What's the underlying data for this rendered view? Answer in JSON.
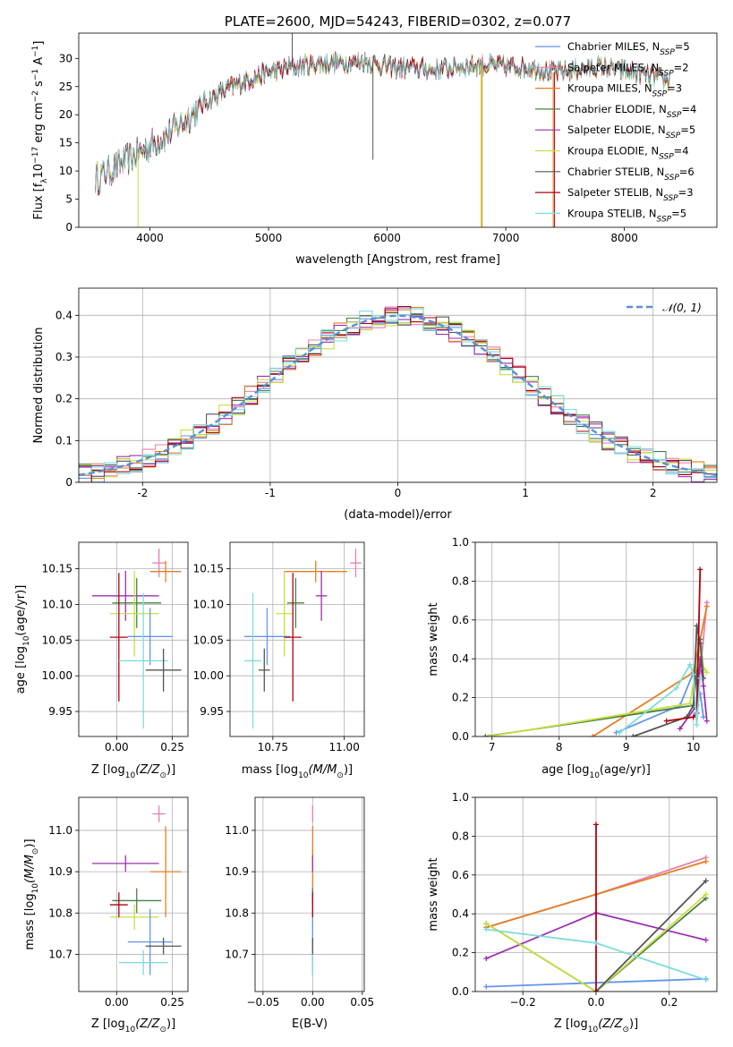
{
  "colors": {
    "chabrier_miles": "#6495ed",
    "salpeter_miles": "#e87fb0",
    "kroupa_miles": "#e67e22",
    "chabrier_elodie": "#4a7f4a",
    "salpeter_elodie": "#9b30b0",
    "kroupa_elodie": "#c8e040",
    "chabrier_stelib": "#555555",
    "salpeter_stelib": "#b00010",
    "kroupa_stelib": "#7fdcdc",
    "gaussian": "#5b8fd8",
    "grid": "#b0b0b0"
  },
  "chart_data": [
    {
      "type": "line",
      "title": "PLATE=2600, MJD=54243, FIBERID=0302, z=0.077",
      "xlabel": "wavelength [Angstrom, rest frame]",
      "ylabel": "Flux [f",
      "ylabel_sub": "λ",
      "ylabel_rest": "10",
      "ylabel_exp": "−17",
      "ylabel_unit": " erg cm",
      "ylabel_exp2": "−2",
      "ylabel_unit2": " s",
      "ylabel_exp3": "−1",
      "ylabel_unit3": " A",
      "ylabel_exp4": "−1",
      "ylabel_end": "]",
      "xlim": [
        3400,
        8780
      ],
      "ylim": [
        0,
        34.5
      ],
      "xticks": [
        4000,
        5000,
        6000,
        7000,
        8000
      ],
      "yticks": [
        0,
        5,
        10,
        15,
        20,
        25,
        30
      ],
      "legend_position": "upper-right",
      "series": [
        {
          "name": "Chabrier MILES, N",
          "sub": "SSP",
          "n": "=5",
          "color_key": "chabrier_miles"
        },
        {
          "name": "Salpeter MILES, N",
          "sub": "SSP",
          "n": "=2",
          "color_key": "salpeter_miles"
        },
        {
          "name": "Kroupa MILES, N",
          "sub": "SSP",
          "n": "=3",
          "color_key": "kroupa_miles"
        },
        {
          "name": "Chabrier ELODIE, N",
          "sub": "SSP",
          "n": "=4",
          "color_key": "chabrier_elodie"
        },
        {
          "name": "Salpeter ELODIE, N",
          "sub": "SSP",
          "n": "=5",
          "color_key": "salpeter_elodie"
        },
        {
          "name": "Kroupa ELODIE, N",
          "sub": "SSP",
          "n": "=4",
          "color_key": "kroupa_elodie"
        },
        {
          "name": "Chabrier STELIB, N",
          "sub": "SSP",
          "n": "=6",
          "color_key": "chabrier_stelib"
        },
        {
          "name": "Salpeter STELIB, N",
          "sub": "SSP",
          "n": "=3",
          "color_key": "salpeter_stelib"
        },
        {
          "name": "Kroupa STELIB, N",
          "sub": "SSP",
          "n": "=5",
          "color_key": "kroupa_stelib"
        }
      ],
      "continuum_x": [
        3540,
        3700,
        3850,
        4000,
        4150,
        4300,
        4450,
        4600,
        4800,
        5000,
        5200,
        5400,
        5600,
        5800,
        6000,
        6200,
        6400,
        6600,
        6800,
        7000,
        7200,
        7400,
        7600,
        7800,
        8000,
        8200,
        8380
      ],
      "continuum_y": [
        8.5,
        10.5,
        12.5,
        14.5,
        16.5,
        19,
        22,
        24,
        26,
        27.5,
        28.5,
        29,
        29.3,
        29.5,
        28.5,
        28.3,
        28,
        28.5,
        28.8,
        28.5,
        28.5,
        27.5,
        28,
        28.5,
        27.8,
        27,
        26
      ],
      "spikes": [
        {
          "x": 3900,
          "y": 0,
          "color_key": "kroupa_elodie"
        },
        {
          "x": 5200,
          "y": 38,
          "color_key": "chabrier_stelib"
        },
        {
          "x": 5880,
          "y": 12,
          "color_key": "chabrier_stelib"
        },
        {
          "x": 6790,
          "y": 0,
          "color_key": "kroupa_elodie"
        },
        {
          "x": 6800,
          "y": 0,
          "color_key": "kroupa_miles"
        },
        {
          "x": 7400,
          "y": 0,
          "color_key": "kroupa_miles"
        },
        {
          "x": 7410,
          "y": 0,
          "color_key": "salpeter_stelib"
        }
      ]
    },
    {
      "type": "histogram",
      "xlabel": "(data-model)/error",
      "ylabel": "Normed distribution",
      "xlim": [
        -2.5,
        2.5
      ],
      "ylim": [
        0,
        0.465
      ],
      "xticks": [
        -2,
        -1,
        0,
        1,
        2
      ],
      "yticks": [
        0.0,
        0.1,
        0.2,
        0.3,
        0.4
      ],
      "bin_width": 0.1,
      "bin_start": -2.5,
      "gaussian_label": "𝒩(0, 1)",
      "gaussian_mu": 0,
      "gaussian_sigma": 1,
      "legend_position": "upper-right"
    },
    {
      "type": "scatter",
      "panel": "Z-age",
      "xlabel": "Z [log",
      "xlabel_sub": "10",
      "xlabel_rest": "(Z/Z",
      "xlabel_sub2": "⊙",
      "xlabel_end": ")]",
      "ylabel": "age  [log",
      "ylabel_sub": "10",
      "ylabel_rest": "(age/yr)]",
      "xlim": [
        -0.17,
        0.32
      ],
      "ylim": [
        9.915,
        10.187
      ],
      "xticks": [
        0.0,
        0.25
      ],
      "xtick_labels": [
        "0.00",
        "0.25"
      ],
      "yticks": [
        9.95,
        10.0,
        10.05,
        10.1,
        10.15
      ],
      "ytick_labels": [
        "9.95",
        "10.00",
        "10.05",
        "10.10",
        "10.15"
      ],
      "points": [
        {
          "x": 0.19,
          "y": 10.158,
          "xerr": 0.03,
          "yerr": 0.02,
          "color_key": "salpeter_miles"
        },
        {
          "x": 0.22,
          "y": 10.146,
          "xerr": 0.07,
          "yerr": 0.015,
          "color_key": "kroupa_miles"
        },
        {
          "x": 0.04,
          "y": 10.112,
          "xerr": 0.15,
          "yerr": 0.035,
          "color_key": "salpeter_elodie"
        },
        {
          "x": 0.09,
          "y": 10.102,
          "xerr": 0.11,
          "yerr": 0.035,
          "color_key": "chabrier_elodie"
        },
        {
          "x": 0.08,
          "y": 10.087,
          "xerr": 0.11,
          "yerr": 0.06,
          "color_key": "kroupa_elodie"
        },
        {
          "x": 0.15,
          "y": 10.055,
          "xerr": 0.1,
          "yerr": 0.04,
          "color_key": "chabrier_miles"
        },
        {
          "x": 0.01,
          "y": 10.054,
          "xerr": 0.04,
          "yerr": 0.09,
          "color_key": "salpeter_stelib"
        },
        {
          "x": 0.12,
          "y": 10.021,
          "xerr": 0.11,
          "yerr": 0.095,
          "color_key": "kroupa_stelib"
        },
        {
          "x": 0.21,
          "y": 10.008,
          "xerr": 0.08,
          "yerr": 0.03,
          "color_key": "chabrier_stelib"
        }
      ]
    },
    {
      "type": "scatter",
      "panel": "mass-age",
      "xlabel": "mass [log",
      "xlabel_sub": "10",
      "xlabel_rest": "(M/M",
      "xlabel_sub2": "⊙",
      "xlabel_end": ")]",
      "xlim": [
        10.6,
        11.07
      ],
      "ylim": [
        9.915,
        10.187
      ],
      "xticks": [
        10.75,
        11.0
      ],
      "xtick_labels": [
        "10.75",
        "11.00"
      ],
      "yticks": [
        9.95,
        10.0,
        10.05,
        10.1,
        10.15
      ],
      "ytick_labels": [
        "9.95",
        "10.00",
        "10.05",
        "10.10",
        "10.15"
      ],
      "points": [
        {
          "x": 11.04,
          "y": 10.158,
          "xerr": 0.02,
          "yerr": 0.02,
          "color_key": "salpeter_miles"
        },
        {
          "x": 10.9,
          "y": 10.146,
          "xerr": 0.11,
          "yerr": 0.015,
          "color_key": "kroupa_miles"
        },
        {
          "x": 10.92,
          "y": 10.112,
          "xerr": 0.02,
          "yerr": 0.035,
          "color_key": "salpeter_elodie"
        },
        {
          "x": 10.83,
          "y": 10.102,
          "xerr": 0.03,
          "yerr": 0.035,
          "color_key": "chabrier_elodie"
        },
        {
          "x": 10.79,
          "y": 10.087,
          "xerr": 0.03,
          "yerr": 0.06,
          "color_key": "kroupa_elodie"
        },
        {
          "x": 10.73,
          "y": 10.055,
          "xerr": 0.08,
          "yerr": 0.04,
          "color_key": "chabrier_miles"
        },
        {
          "x": 10.82,
          "y": 10.054,
          "xerr": 0.03,
          "yerr": 0.09,
          "color_key": "salpeter_stelib"
        },
        {
          "x": 10.68,
          "y": 10.021,
          "xerr": 0.03,
          "yerr": 0.095,
          "color_key": "kroupa_stelib"
        },
        {
          "x": 10.72,
          "y": 10.008,
          "xerr": 0.02,
          "yerr": 0.03,
          "color_key": "chabrier_stelib"
        }
      ]
    },
    {
      "type": "line",
      "panel": "age-weight",
      "xlabel": "age  [log",
      "xlabel_sub": "10",
      "xlabel_rest": "(age/yr)]",
      "ylabel": "mass weight",
      "xlim": [
        6.75,
        10.35
      ],
      "ylim": [
        0,
        1.0
      ],
      "xticks": [
        7,
        8,
        9,
        10
      ],
      "yticks": [
        0.0,
        0.2,
        0.4,
        0.6,
        0.8,
        1.0
      ],
      "ytick_labels": [
        "0.0",
        "0.2",
        "0.4",
        "0.6",
        "0.8",
        "1.0"
      ],
      "series": [
        {
          "color_key": "chabrier_miles",
          "x": [
            8.85,
            9.8,
            10.0,
            10.1,
            10.15
          ],
          "y": [
            0.02,
            0.16,
            0.33,
            0.22,
            0.1
          ]
        },
        {
          "color_key": "salpeter_miles",
          "x": [
            10.1,
            10.2
          ],
          "y": [
            0.33,
            0.69
          ]
        },
        {
          "color_key": "kroupa_miles",
          "x": [
            8.5,
            10.0,
            10.2
          ],
          "y": [
            0.0,
            0.33,
            0.67
          ]
        },
        {
          "color_key": "chabrier_elodie",
          "x": [
            6.9,
            10.0,
            10.1,
            10.15
          ],
          "y": [
            0.0,
            0.16,
            0.5,
            0.35
          ]
        },
        {
          "color_key": "salpeter_elodie",
          "x": [
            9.8,
            10.05,
            10.1,
            10.15,
            10.2
          ],
          "y": [
            0.04,
            0.16,
            0.4,
            0.26,
            0.08
          ]
        },
        {
          "color_key": "kroupa_elodie",
          "x": [
            6.95,
            9.95,
            10.1,
            10.15,
            10.2
          ],
          "y": [
            0.0,
            0.17,
            0.48,
            0.35,
            0.33
          ]
        },
        {
          "color_key": "chabrier_stelib",
          "x": [
            9.1,
            9.9,
            10.0,
            10.05,
            10.1,
            10.15
          ],
          "y": [
            0.0,
            0.1,
            0.16,
            0.57,
            0.48,
            0.3
          ]
        },
        {
          "color_key": "salpeter_stelib",
          "x": [
            9.6,
            10.0,
            10.05,
            10.1
          ],
          "y": [
            0.08,
            0.1,
            0.12,
            0.86
          ]
        },
        {
          "color_key": "kroupa_stelib",
          "x": [
            8.9,
            9.75,
            9.95,
            10.0,
            10.05,
            10.1
          ],
          "y": [
            0.02,
            0.25,
            0.37,
            0.32,
            0.06,
            0.3
          ]
        }
      ]
    },
    {
      "type": "scatter",
      "panel": "Z-mass",
      "xlabel": "Z [log",
      "xlabel_sub": "10",
      "xlabel_rest": "(Z/Z",
      "xlabel_sub2": "⊙",
      "xlabel_end": ")]",
      "ylabel": "mass [log",
      "ylabel_sub": "10",
      "ylabel_rest": "(M/M",
      "ylabel_sub2": "⊙",
      "ylabel_end": ")]",
      "xlim": [
        -0.17,
        0.32
      ],
      "ylim": [
        10.61,
        11.08
      ],
      "xticks": [
        0.0,
        0.25
      ],
      "xtick_labels": [
        "0.00",
        "0.25"
      ],
      "yticks": [
        10.7,
        10.8,
        10.9,
        11.0
      ],
      "ytick_labels": [
        "10.7",
        "10.8",
        "10.9",
        "11.0"
      ],
      "points": [
        {
          "x": 0.19,
          "y": 11.04,
          "xerr": 0.03,
          "yerr": 0.02,
          "color_key": "salpeter_miles"
        },
        {
          "x": 0.22,
          "y": 10.9,
          "xerr": 0.07,
          "yerr": 0.11,
          "color_key": "kroupa_miles"
        },
        {
          "x": 0.04,
          "y": 10.92,
          "xerr": 0.15,
          "yerr": 0.02,
          "color_key": "salpeter_elodie"
        },
        {
          "x": 0.09,
          "y": 10.83,
          "xerr": 0.11,
          "yerr": 0.03,
          "color_key": "chabrier_elodie"
        },
        {
          "x": 0.08,
          "y": 10.79,
          "xerr": 0.11,
          "yerr": 0.03,
          "color_key": "kroupa_elodie"
        },
        {
          "x": 0.15,
          "y": 10.73,
          "xerr": 0.1,
          "yerr": 0.08,
          "color_key": "chabrier_miles"
        },
        {
          "x": 0.01,
          "y": 10.82,
          "xerr": 0.04,
          "yerr": 0.03,
          "color_key": "salpeter_stelib"
        },
        {
          "x": 0.12,
          "y": 10.68,
          "xerr": 0.11,
          "yerr": 0.03,
          "color_key": "kroupa_stelib"
        },
        {
          "x": 0.21,
          "y": 10.72,
          "xerr": 0.08,
          "yerr": 0.02,
          "color_key": "chabrier_stelib"
        }
      ]
    },
    {
      "type": "scatter",
      "panel": "EBV-mass",
      "xlabel": "E(B-V)",
      "xlim": [
        -0.058,
        0.052
      ],
      "ylim": [
        10.61,
        11.08
      ],
      "xticks": [
        -0.05,
        0.0,
        0.05
      ],
      "xtick_labels": [
        "−0.05",
        "0.00",
        "0.05"
      ],
      "yticks": [
        10.7,
        10.8,
        10.9,
        11.0
      ],
      "ytick_labels": [
        "10.7",
        "10.8",
        "10.9",
        "11.0"
      ],
      "points": [
        {
          "x": 0.0,
          "y": 11.04,
          "xerr": 0.0,
          "yerr": 0.02,
          "color_key": "salpeter_miles"
        },
        {
          "x": 0.0,
          "y": 10.9,
          "xerr": 0.0,
          "yerr": 0.11,
          "color_key": "kroupa_miles"
        },
        {
          "x": 0.0,
          "y": 10.92,
          "xerr": 0.0,
          "yerr": 0.02,
          "color_key": "salpeter_elodie"
        },
        {
          "x": 0.0,
          "y": 10.83,
          "xerr": 0.0,
          "yerr": 0.03,
          "color_key": "chabrier_elodie"
        },
        {
          "x": 0.0,
          "y": 10.79,
          "xerr": 0.0,
          "yerr": 0.03,
          "color_key": "kroupa_elodie"
        },
        {
          "x": 0.0,
          "y": 10.73,
          "xerr": 0.0,
          "yerr": 0.08,
          "color_key": "chabrier_miles"
        },
        {
          "x": 0.0,
          "y": 10.82,
          "xerr": 0.0,
          "yerr": 0.03,
          "color_key": "salpeter_stelib"
        },
        {
          "x": 0.0,
          "y": 10.68,
          "xerr": 0.0,
          "yerr": 0.03,
          "color_key": "kroupa_stelib"
        },
        {
          "x": 0.0,
          "y": 10.72,
          "xerr": 0.0,
          "yerr": 0.02,
          "color_key": "chabrier_stelib"
        }
      ]
    },
    {
      "type": "line",
      "panel": "Z-weight",
      "xlabel": "Z [log",
      "xlabel_sub": "10",
      "xlabel_rest": "(Z/Z",
      "xlabel_sub2": "⊙",
      "xlabel_end": ")]",
      "ylabel": "mass weight",
      "xlim": [
        -0.33,
        0.33
      ],
      "ylim": [
        0,
        1.0
      ],
      "xticks": [
        -0.2,
        0.0,
        0.2
      ],
      "xtick_labels": [
        "−0.2",
        "0.0",
        "0.2"
      ],
      "yticks": [
        0.0,
        0.2,
        0.4,
        0.6,
        0.8,
        1.0
      ],
      "ytick_labels": [
        "0.0",
        "0.2",
        "0.4",
        "0.6",
        "0.8",
        "1.0"
      ],
      "series": [
        {
          "color_key": "chabrier_miles",
          "x": [
            -0.3,
            0.0,
            0.3
          ],
          "y": [
            0.025,
            0.045,
            0.065
          ]
        },
        {
          "color_key": "salpeter_miles",
          "x": [
            -0.3,
            0.0,
            0.3
          ],
          "y": [
            0.33,
            0.5,
            0.69
          ]
        },
        {
          "color_key": "kroupa_miles",
          "x": [
            -0.3,
            0.0,
            0.3
          ],
          "y": [
            0.33,
            0.5,
            0.67
          ]
        },
        {
          "color_key": "chabrier_elodie",
          "x": [
            -0.3,
            0.0,
            0.3
          ],
          "y": [
            0.35,
            0.0,
            0.48
          ]
        },
        {
          "color_key": "salpeter_elodie",
          "x": [
            -0.3,
            0.0,
            0.3
          ],
          "y": [
            0.17,
            0.405,
            0.265
          ]
        },
        {
          "color_key": "kroupa_elodie",
          "x": [
            -0.3,
            0.0,
            0.3
          ],
          "y": [
            0.35,
            0.0,
            0.5
          ]
        },
        {
          "color_key": "chabrier_stelib",
          "x": [
            0.0,
            0.3
          ],
          "y": [
            0.0,
            0.57
          ]
        },
        {
          "color_key": "salpeter_stelib",
          "x": [
            0.0,
            0.0
          ],
          "y": [
            0.0,
            0.86
          ]
        },
        {
          "color_key": "kroupa_stelib",
          "x": [
            -0.3,
            0.0,
            0.3
          ],
          "y": [
            0.32,
            0.25,
            0.06
          ]
        }
      ]
    }
  ]
}
